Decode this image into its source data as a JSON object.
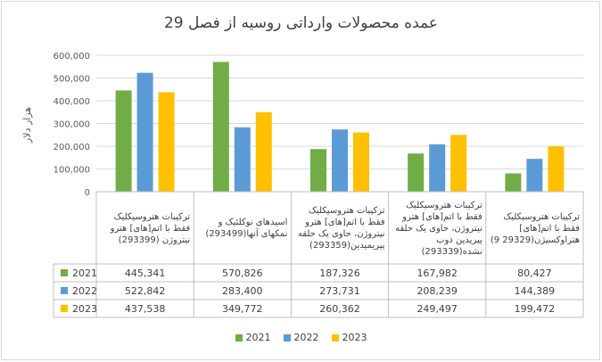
{
  "chart_data": {
    "type": "bar",
    "title": "عمده محصولات وارداتی روسیه از فصل 29",
    "ylabel": "هزار دلار",
    "ylim": [
      0,
      600000
    ],
    "yticks": [
      "0",
      "100,000",
      "200,000",
      "300,000",
      "400,000",
      "500,000",
      "600,000"
    ],
    "ytick_values": [
      0,
      100000,
      200000,
      300000,
      400000,
      500000,
      600000
    ],
    "grid": true,
    "legend": "bottom",
    "categories": [
      "ترکیبات هتروسیکلیک فقط با اتم[های] هترو نیتروژن (293399)",
      "اسیدهای نوکلئیک و نمکهای آنها(293499)",
      "ترکیبات هتروسیکلیک فقط با اتم[های] هترو نیتروژن، حاوی یک حلقه پیریمیدین(293359)",
      "ترکیبات هتروسیکلیک فقط با اتم[های] هترو نیتروژن، حاوی یک حلقه پیریدین ذوب نشده(293339)",
      "ترکیبات هتروسیکلیک فقط با اتم[های] هتراوکسیژن(29329 9)"
    ],
    "series": [
      {
        "name": "2021",
        "color": "#70ad47",
        "values": [
          445341,
          570826,
          187326,
          167982,
          80427
        ],
        "labels": [
          "445,341",
          "570,826",
          "187,326",
          "167,982",
          "80,427"
        ]
      },
      {
        "name": "2022",
        "color": "#5b9bd5",
        "values": [
          522842,
          283400,
          273731,
          208239,
          144389
        ],
        "labels": [
          "522,842",
          "283,400",
          "273,731",
          "208,239",
          "144,389"
        ]
      },
      {
        "name": "2023",
        "color": "#ffc000",
        "values": [
          437538,
          349772,
          260362,
          249497,
          199472
        ],
        "labels": [
          "437,538",
          "349,772",
          "260,362",
          "249,497",
          "199,472"
        ]
      }
    ]
  }
}
